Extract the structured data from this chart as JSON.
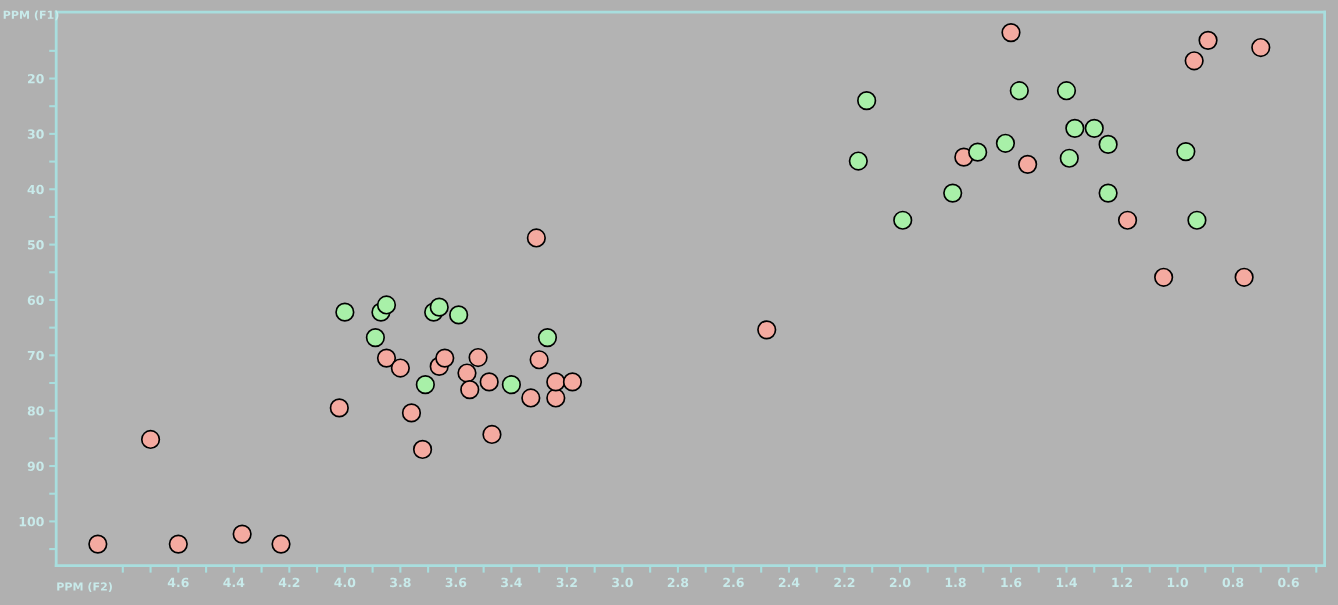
{
  "chart_data": {
    "type": "scatter",
    "xlabel": "PPM (F2)",
    "ylabel": "PPM (F1)",
    "xlim": [
      5.04,
      0.47
    ],
    "ylim": [
      108,
      8
    ],
    "xticks": [
      {
        "value": 4.8,
        "label": null
      },
      {
        "value": 4.7,
        "label": null
      },
      4.6,
      {
        "value": 4.5,
        "label": null
      },
      4.4,
      {
        "value": 4.3,
        "label": null
      },
      4.2,
      {
        "value": 4.1,
        "label": null
      },
      {
        "value": 4.0,
        "label": "4.0"
      },
      {
        "value": 3.9,
        "label": null
      },
      3.8,
      {
        "value": 3.7,
        "label": null
      },
      3.6,
      {
        "value": 3.5,
        "label": null
      },
      3.4,
      {
        "value": 3.3,
        "label": null
      },
      3.2,
      {
        "value": 3.1,
        "label": null
      },
      {
        "value": 3.0,
        "label": "3.0"
      },
      {
        "value": 2.9,
        "label": null
      },
      2.8,
      {
        "value": 2.7,
        "label": null
      },
      2.6,
      {
        "value": 2.5,
        "label": null
      },
      2.4,
      {
        "value": 2.3,
        "label": null
      },
      2.2,
      {
        "value": 2.1,
        "label": null
      },
      {
        "value": 2.0,
        "label": "2.0"
      },
      {
        "value": 1.9,
        "label": null
      },
      1.8,
      {
        "value": 1.7,
        "label": null
      },
      1.6,
      {
        "value": 1.5,
        "label": null
      },
      1.4,
      {
        "value": 1.3,
        "label": null
      },
      1.2,
      {
        "value": 1.1,
        "label": null
      },
      {
        "value": 1.0,
        "label": "1.0"
      },
      {
        "value": 0.9,
        "label": null
      },
      0.8,
      {
        "value": 0.7,
        "label": null
      },
      0.6,
      {
        "value": 0.5,
        "label": null
      }
    ],
    "yticks": [
      {
        "value": 15,
        "label": null
      },
      20,
      {
        "value": 25,
        "label": null
      },
      30,
      {
        "value": 35,
        "label": null
      },
      40,
      {
        "value": 45,
        "label": null
      },
      50,
      {
        "value": 55,
        "label": null
      },
      60,
      {
        "value": 65,
        "label": null
      },
      70,
      {
        "value": 75,
        "label": null
      },
      80,
      {
        "value": 85,
        "label": null
      },
      90,
      {
        "value": 95,
        "label": null
      },
      100,
      {
        "value": 105,
        "label": null
      }
    ],
    "grid": false,
    "marker": "circle",
    "series": [
      {
        "color": "#f4aaa0",
        "x": [
          4.89,
          4.7,
          4.6,
          4.37,
          4.23,
          4.02,
          3.85,
          3.8,
          3.76,
          3.72,
          3.66,
          3.64,
          3.56,
          3.52,
          3.55,
          3.48,
          3.47,
          3.31,
          3.3,
          3.33,
          3.24,
          3.24,
          3.18,
          2.48,
          1.6,
          0.89,
          0.94,
          0.7,
          1.77,
          1.54,
          1.18,
          1.05,
          0.76
        ],
        "values": [
          104.1,
          85.2,
          104.1,
          102.3,
          104.1,
          79.5,
          70.5,
          72.3,
          80.4,
          87.0,
          72.0,
          70.5,
          73.2,
          70.4,
          76.2,
          74.8,
          84.3,
          48.8,
          70.8,
          77.7,
          77.7,
          74.8,
          74.8,
          65.4,
          11.7,
          13.1,
          16.8,
          14.4,
          34.2,
          35.5,
          45.6,
          55.9,
          55.9
        ]
      },
      {
        "color": "#a8f0a8",
        "x": [
          4.0,
          3.87,
          3.85,
          3.89,
          3.68,
          3.66,
          3.59,
          3.71,
          3.4,
          3.27,
          2.12,
          2.15,
          1.99,
          1.81,
          1.72,
          1.62,
          1.57,
          1.4,
          1.39,
          1.37,
          1.3,
          1.25,
          1.25,
          0.97,
          0.93
        ],
        "values": [
          62.2,
          62.2,
          60.9,
          66.8,
          62.2,
          61.3,
          62.7,
          75.3,
          75.3,
          66.8,
          24.0,
          34.9,
          45.6,
          40.7,
          33.3,
          31.7,
          22.2,
          22.2,
          34.4,
          29.0,
          29.0,
          31.9,
          40.7,
          33.2,
          45.6
        ]
      }
    ]
  }
}
